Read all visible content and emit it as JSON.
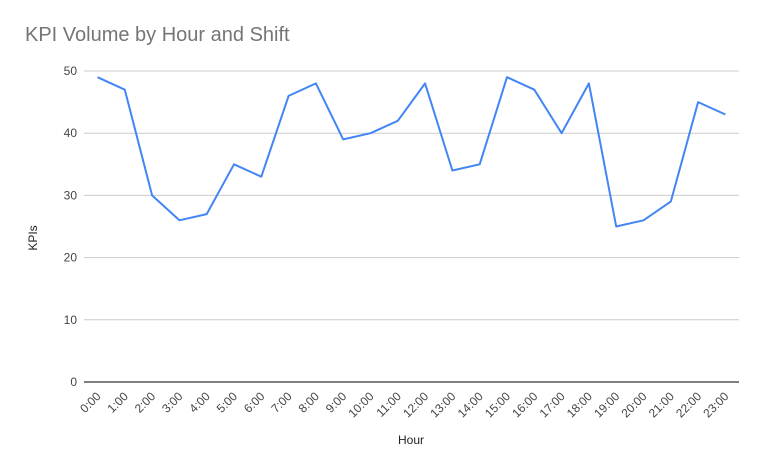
{
  "chart_data": {
    "type": "line",
    "title": "KPI Volume by Hour and Shift",
    "xlabel": "Hour",
    "ylabel": "KPIs",
    "ylim": [
      0,
      50
    ],
    "yticks": [
      0,
      10,
      20,
      30,
      40,
      50
    ],
    "grid": true,
    "legend": "none",
    "categories": [
      "0:00",
      "1:00",
      "2:00",
      "3:00",
      "4:00",
      "5:00",
      "6:00",
      "7:00",
      "8:00",
      "9:00",
      "10:00",
      "11:00",
      "12:00",
      "13:00",
      "14:00",
      "15:00",
      "16:00",
      "17:00",
      "18:00",
      "19:00",
      "20:00",
      "21:00",
      "22:00",
      "23:00"
    ],
    "series": [
      {
        "values": [
          49,
          47,
          30,
          26,
          27,
          35,
          33,
          46,
          48,
          39,
          40,
          42,
          48,
          34,
          35,
          49,
          47,
          40,
          48,
          25,
          26,
          29,
          45,
          43
        ]
      }
    ],
    "colors": {
      "line": "#4285f4",
      "grid": "#cccccc",
      "baseline": "#333333"
    }
  }
}
